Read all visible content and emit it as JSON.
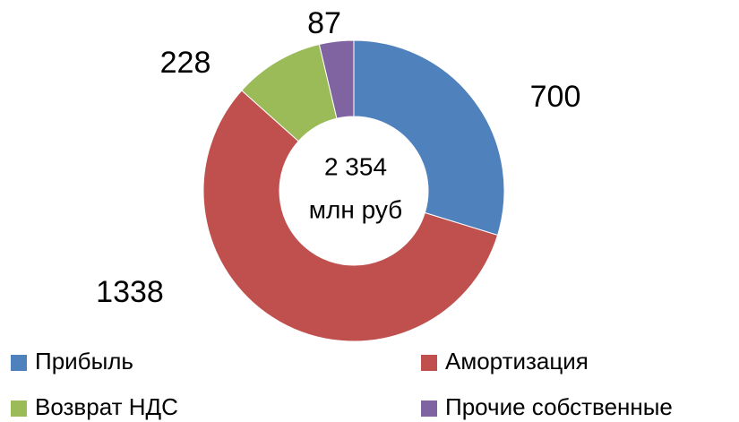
{
  "chart_data": {
    "type": "donut",
    "categories": [
      "Прибыль",
      "Амортизация",
      "Возврат НДС",
      "Прочие собственные"
    ],
    "values": [
      700,
      1338,
      228,
      87
    ],
    "colors": [
      "#4f81bd",
      "#c0504d",
      "#9bbb59",
      "#8064a2"
    ],
    "center_text": [
      "2 354",
      "млн руб"
    ],
    "legend": "bottom"
  }
}
